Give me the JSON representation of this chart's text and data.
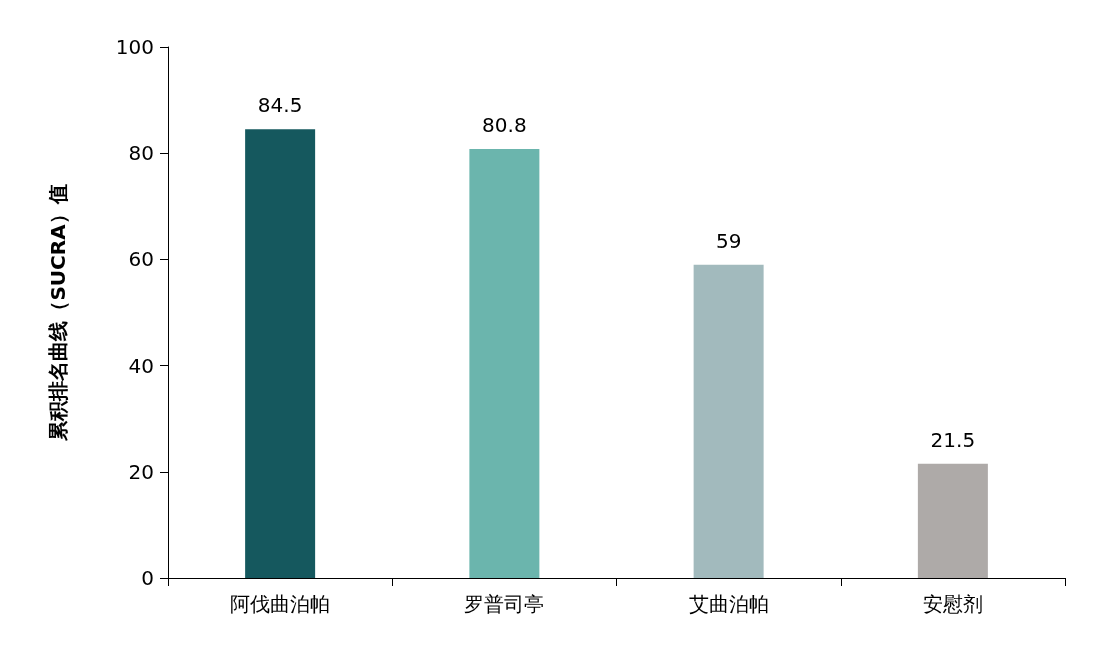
{
  "chart_data": {
    "type": "bar",
    "ylabel": "累积排名曲线（SUCRA）值",
    "categories": [
      "阿伐曲泊帕",
      "罗普司亭",
      "艾曲泊帕",
      "安慰剂"
    ],
    "values": [
      84.5,
      80.8,
      59,
      21.5
    ],
    "colors": [
      "#15585e",
      "#6bb5ad",
      "#a2babd",
      "#aeaaa8"
    ],
    "ylim": [
      0,
      100
    ],
    "yticks": [
      0,
      20,
      40,
      60,
      80,
      100
    ],
    "grid": false,
    "data_labels": true
  }
}
